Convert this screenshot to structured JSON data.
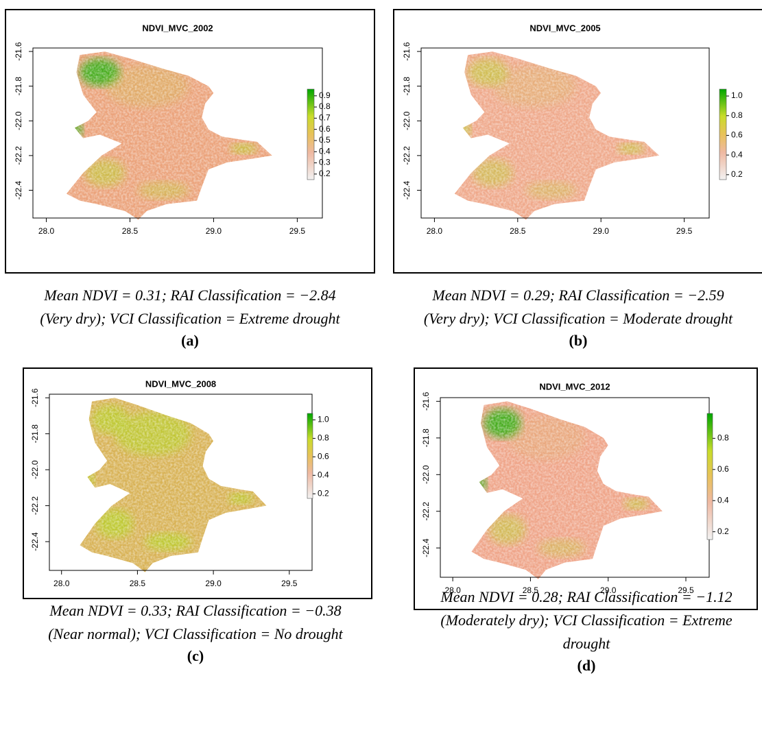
{
  "panels": [
    {
      "title": "NDVI_MVC_2002",
      "xticks": [
        {
          "value": 28,
          "label": "28.0"
        },
        28.5,
        {
          "value": 29,
          "label": "29.0"
        },
        29.5
      ],
      "yticks": [
        -21.6,
        -21.8,
        {
          "value": -22,
          "label": "-22.0"
        },
        -22.2,
        -22.4
      ],
      "xlim": [
        27.92,
        29.65
      ],
      "ylim": [
        -22.56,
        -21.58
      ],
      "colorbar": {
        "lim": [
          0.15,
          0.96
        ],
        "ticks": [
          0.9,
          0.8,
          0.7,
          0.6,
          0.5,
          0.4,
          0.3,
          0.2
        ]
      },
      "caption": [
        "Mean NDVI = 0.31; RAI Classification = −2.84",
        "(Very dry); VCI Classification = Extreme drought"
      ],
      "label": "(a)"
    },
    {
      "title": "NDVI_MVC_2005",
      "xticks": [
        {
          "value": 28,
          "label": "28.0"
        },
        28.5,
        {
          "value": 29,
          "label": "29.0"
        },
        29.5
      ],
      "yticks": [
        -21.6,
        -21.8,
        {
          "value": -22,
          "label": "-22.0"
        },
        -22.2,
        -22.4
      ],
      "xlim": [
        27.92,
        29.65
      ],
      "ylim": [
        -22.56,
        -21.58
      ],
      "colorbar": {
        "lim": [
          0.15,
          1.07
        ],
        "ticks": [
          {
            "value": 1,
            "label": "1.0"
          },
          0.8,
          0.6,
          0.4,
          0.2
        ]
      },
      "caption": [
        "Mean NDVI = 0.29; RAI Classification = −2.59",
        "(Very dry); VCI Classification = Moderate drought"
      ],
      "label": "(b)"
    },
    {
      "title": "NDVI_MVC_2008",
      "xticks": [
        {
          "value": 28,
          "label": "28.0"
        },
        28.5,
        {
          "value": 29,
          "label": "29.0"
        },
        29.5
      ],
      "yticks": [
        -21.6,
        -21.8,
        {
          "value": -22,
          "label": "-22.0"
        },
        -22.2,
        -22.4
      ],
      "xlim": [
        27.92,
        29.65
      ],
      "ylim": [
        -22.56,
        -21.58
      ],
      "colorbar": {
        "lim": [
          0.15,
          1.07
        ],
        "ticks": [
          {
            "value": 1,
            "label": "1.0"
          },
          0.8,
          0.6,
          0.4,
          0.2
        ]
      },
      "caption": [
        "Mean NDVI = 0.33; RAI Classification = −0.38",
        "(Near normal); VCI Classification = No drought"
      ],
      "label": "(c)"
    },
    {
      "title": "NDVI_MVC_2012",
      "xticks": [
        {
          "value": 28,
          "label": "28.0"
        },
        28.5,
        {
          "value": 29,
          "label": "29.0"
        },
        29.5
      ],
      "yticks": [
        -21.6,
        -21.8,
        {
          "value": -22,
          "label": "-22.0"
        },
        -22.2,
        -22.4
      ],
      "xlim": [
        27.92,
        29.65
      ],
      "ylim": [
        -22.56,
        -21.58
      ],
      "colorbar": {
        "lim": [
          0.15,
          0.96
        ],
        "ticks": [
          0.8,
          0.6,
          0.4,
          0.2
        ]
      },
      "caption": [
        "Mean NDVI = 0.28; RAI Classification = −1.12",
        "(Moderately dry); VCI Classification = Extreme",
        "drought"
      ],
      "label": "(d)"
    }
  ]
}
